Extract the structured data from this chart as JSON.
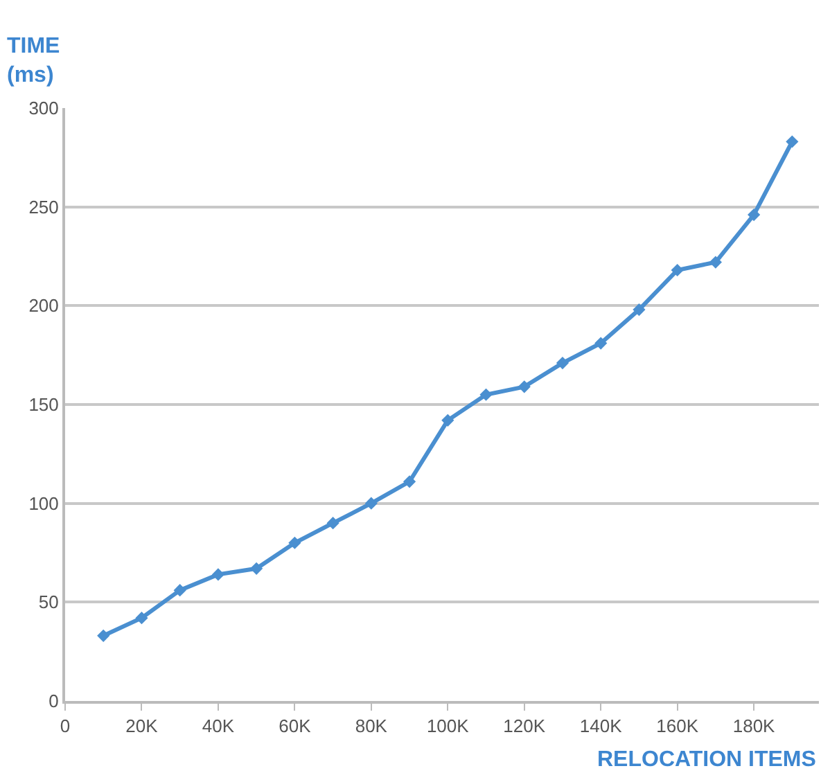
{
  "chart_data": {
    "type": "line",
    "ylabel": "TIME\n(ms)",
    "xlabel": "RELOCATION ITEMS",
    "x": [
      10000,
      20000,
      30000,
      40000,
      50000,
      60000,
      70000,
      80000,
      90000,
      100000,
      110000,
      120000,
      130000,
      140000,
      150000,
      160000,
      170000,
      180000,
      190000
    ],
    "series": [
      {
        "color": "#4a8fd0",
        "values": [
          33,
          42,
          56,
          64,
          67,
          80,
          90,
          100,
          111,
          142,
          155,
          159,
          171,
          181,
          198,
          218,
          222,
          246,
          283
        ]
      }
    ],
    "xlim": [
      0,
      197000
    ],
    "xticks": [
      0,
      {
        "value": 20000,
        "label": "20K"
      },
      {
        "value": 40000,
        "label": "40K"
      },
      {
        "value": 60000,
        "label": "60K"
      },
      {
        "value": 80000,
        "label": "80K"
      },
      {
        "value": 100000,
        "label": "100K"
      },
      {
        "value": 120000,
        "label": "120K"
      },
      {
        "value": 140000,
        "label": "140K"
      },
      {
        "value": 160000,
        "label": "160K"
      },
      {
        "value": 180000,
        "label": "180K"
      }
    ],
    "ylim": [
      0,
      300
    ],
    "yticks": [
      0,
      50,
      100,
      150,
      200,
      250,
      300
    ],
    "grid": "y",
    "marker": "diamond",
    "line_style": "solid"
  }
}
